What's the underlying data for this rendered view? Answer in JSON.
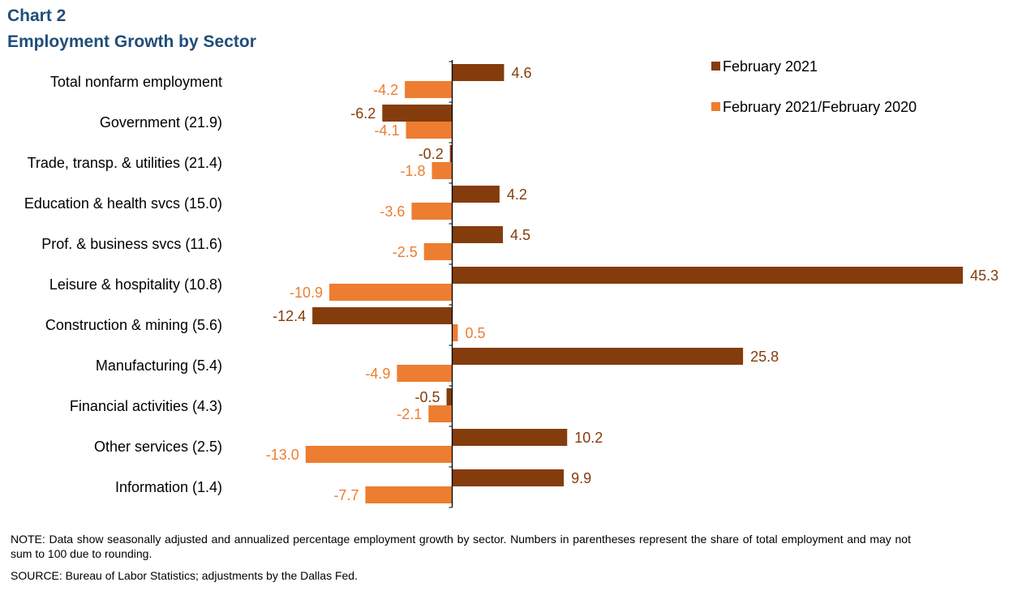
{
  "header": {
    "chart_number": "Chart 2",
    "title": "Employment Growth by Sector"
  },
  "footer": {
    "note": "NOTE: Data show seasonally adjusted and annualized percentage employment growth by sector. Numbers in parentheses represent the share of total employment and may not sum to 100 due to rounding.",
    "source": "SOURCE: Bureau of Labor Statistics; adjustments by the Dallas Fed."
  },
  "chart_data": {
    "type": "bar",
    "orientation": "horizontal",
    "title": "Employment Growth by Sector",
    "categories": [
      "Total nonfarm employment",
      "Government (21.9)",
      "Trade, transp. & utilities (21.4)",
      "Education & health svcs (15.0)",
      "Prof. & business svcs (11.6)",
      "Leisure & hospitality (10.8)",
      "Construction & mining (5.6)",
      "Manufacturing (5.4)",
      "Financial activities (4.3)",
      "Other services (2.5)",
      "Information (1.4)"
    ],
    "series": [
      {
        "name": "February 2021",
        "color": "#843c0c",
        "values": [
          4.6,
          -6.2,
          -0.2,
          4.2,
          4.5,
          45.3,
          -12.4,
          25.8,
          -0.5,
          10.2,
          9.9
        ],
        "labels": [
          "4.6",
          "-6.2",
          "-0.2",
          "4.2",
          "4.5",
          "45.3",
          "-12.4",
          "25.8",
          "-0.5",
          "10.2",
          "9.9"
        ]
      },
      {
        "name": "February 2021/February 2020",
        "color": "#ed7d31",
        "values": [
          -4.2,
          -4.1,
          -1.8,
          -3.6,
          -2.5,
          -10.9,
          0.5,
          -4.9,
          -2.1,
          -13.0,
          -7.7
        ],
        "labels": [
          "-4.2",
          "-4.1",
          "-1.8",
          "-3.6",
          "-2.5",
          "-10.9",
          "0.5",
          "-4.9",
          "-2.1",
          "-13.0",
          "-7.7"
        ]
      }
    ],
    "legend_position": "top-right",
    "grid": false
  }
}
